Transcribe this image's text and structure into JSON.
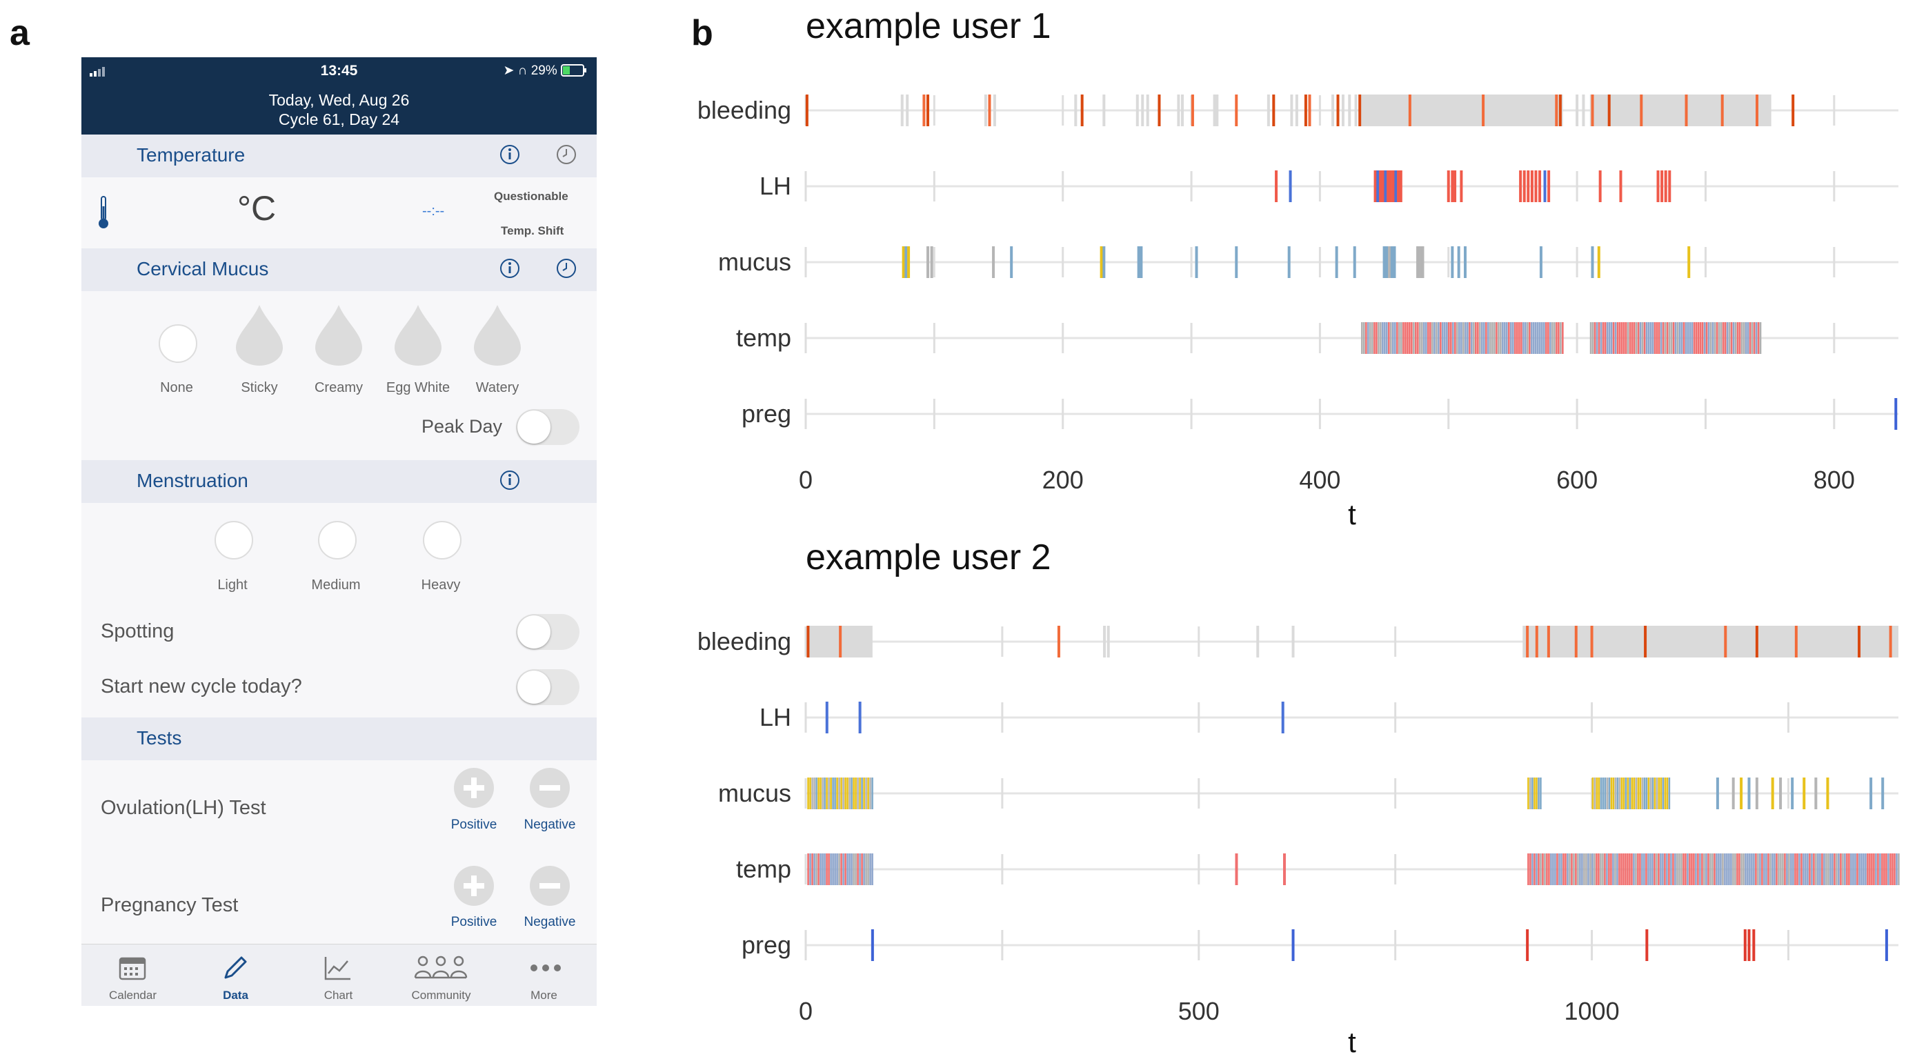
{
  "panel_labels": {
    "a": "a",
    "b": "b"
  },
  "phone": {
    "status": {
      "time": "13:45",
      "battery": "29%"
    },
    "header": {
      "date_line": "Today, Wed, Aug 26",
      "cycle_line": "Cycle 61, Day 24"
    },
    "temperature": {
      "title": "Temperature",
      "unit": "°C",
      "time_placeholder": "--:--",
      "questionable_label": "Questionable",
      "temp_shift_label": "Temp. Shift",
      "icons": [
        "info-icon",
        "clock-icon",
        "thermometer-icon"
      ]
    },
    "cervical_mucus": {
      "title": "Cervical Mucus",
      "options": [
        "None",
        "Sticky",
        "Creamy",
        "Egg White",
        "Watery"
      ],
      "peak_day_label": "Peak Day"
    },
    "menstruation": {
      "title": "Menstruation",
      "options": [
        "Light",
        "Medium",
        "Heavy"
      ],
      "spotting_label": "Spotting",
      "new_cycle_label": "Start new cycle today?"
    },
    "tests": {
      "title": "Tests",
      "ovulation_label": "Ovulation(LH) Test",
      "pregnancy_label": "Pregnancy Test",
      "positive_label": "Positive",
      "negative_label": "Negative"
    },
    "tabs": [
      {
        "label": "Calendar",
        "icon": "calendar-icon",
        "active": false
      },
      {
        "label": "Data",
        "icon": "pencil-icon",
        "active": true
      },
      {
        "label": "Chart",
        "icon": "chart-icon",
        "active": false
      },
      {
        "label": "Community",
        "icon": "community-icon",
        "active": false
      },
      {
        "label": "More",
        "icon": "more-icon",
        "active": false
      }
    ]
  },
  "colors": {
    "bleed_heavy": "#d9480f",
    "bleed_mid": "#f26b3a",
    "bleed_light": "#dadada",
    "lh_pos": "#f05a4a",
    "lh_neg": "#4a72d8",
    "mucus_yellow": "#e8c21c",
    "mucus_blue": "#7fa9c9",
    "mucus_gray": "#b5b5b5",
    "temp_red": "#f07070",
    "temp_blue": "#8fa6cc",
    "temp_gray": "#b0b0b0",
    "preg_pos": "#e03b2e",
    "preg_neg": "#3d62d6",
    "baseline": "#e4e4e4"
  },
  "chart_data": [
    {
      "type": "event-strip",
      "title": "example user 1",
      "xlabel": "t",
      "xlim": [
        0,
        850
      ],
      "xticks": [
        0,
        200,
        400,
        600,
        800
      ],
      "rows": [
        "bleeding",
        "LH",
        "mucus",
        "temp",
        "preg"
      ],
      "events": {
        "bleeding": [
          {
            "x": 1,
            "c": "bleed_heavy"
          },
          {
            "x": 75,
            "c": "bleed_light"
          },
          {
            "x": 79,
            "c": "bleed_light"
          },
          {
            "x": 92,
            "c": "bleed_mid"
          },
          {
            "x": 95,
            "c": "bleed_heavy"
          },
          {
            "x": 140,
            "c": "bleed_light"
          },
          {
            "x": 143,
            "c": "bleed_mid"
          },
          {
            "x": 147,
            "c": "bleed_light"
          },
          {
            "x": 210,
            "c": "bleed_light"
          },
          {
            "x": 215,
            "c": "bleed_heavy"
          },
          {
            "x": 232,
            "c": "bleed_light"
          },
          {
            "x": 258,
            "c": "bleed_light"
          },
          {
            "x": 262,
            "c": "bleed_light"
          },
          {
            "x": 266,
            "c": "bleed_light"
          },
          {
            "x": 275,
            "c": "bleed_heavy"
          },
          {
            "x": 290,
            "c": "bleed_light"
          },
          {
            "x": 293,
            "c": "bleed_light"
          },
          {
            "x": 301,
            "c": "bleed_mid"
          },
          {
            "x": 318,
            "c": "bleed_light"
          },
          {
            "x": 320,
            "c": "bleed_light"
          },
          {
            "x": 335,
            "c": "bleed_mid"
          },
          {
            "x": 360,
            "c": "bleed_light"
          },
          {
            "x": 364,
            "c": "bleed_heavy"
          },
          {
            "x": 378,
            "c": "bleed_light"
          },
          {
            "x": 382,
            "c": "bleed_light"
          },
          {
            "x": 389,
            "c": "bleed_heavy"
          },
          {
            "x": 392,
            "c": "bleed_mid"
          },
          {
            "x": 410,
            "c": "bleed_light"
          },
          {
            "x": 414,
            "c": "bleed_heavy"
          },
          {
            "x": 418,
            "c": "bleed_light"
          },
          {
            "x": 423,
            "c": "bleed_light"
          },
          {
            "x": 428,
            "c": "bleed_light"
          },
          {
            "x": 431,
            "c": "bleed_heavy"
          },
          {
            "x0": 432,
            "x1": 589,
            "c": "bleed_light"
          },
          {
            "x": 470,
            "c": "bleed_mid"
          },
          {
            "x": 527,
            "c": "bleed_mid"
          },
          {
            "x": 584,
            "c": "bleed_mid"
          },
          {
            "x": 587,
            "c": "bleed_heavy"
          },
          {
            "x": 600,
            "c": "bleed_light"
          },
          {
            "x": 605,
            "c": "bleed_light"
          },
          {
            "x0": 610,
            "x1": 750,
            "c": "bleed_light"
          },
          {
            "x": 612,
            "c": "bleed_mid"
          },
          {
            "x": 625,
            "c": "bleed_heavy"
          },
          {
            "x": 650,
            "c": "bleed_mid"
          },
          {
            "x": 685,
            "c": "bleed_mid"
          },
          {
            "x": 713,
            "c": "bleed_mid"
          },
          {
            "x": 740,
            "c": "bleed_mid"
          },
          {
            "x": 750,
            "c": "bleed_light"
          },
          {
            "x": 768,
            "c": "bleed_heavy"
          }
        ],
        "LH": [
          {
            "x": 366,
            "c": "lh_pos"
          },
          {
            "x": 377,
            "c": "lh_neg"
          },
          {
            "x": 443,
            "c": "lh_pos"
          },
          {
            "x": 445,
            "c": "lh_neg"
          },
          {
            "x": 447,
            "c": "lh_pos"
          },
          {
            "x": 449,
            "c": "lh_pos"
          },
          {
            "x": 451,
            "c": "lh_neg"
          },
          {
            "x": 453,
            "c": "lh_pos"
          },
          {
            "x": 455,
            "c": "lh_pos"
          },
          {
            "x": 457,
            "c": "lh_pos"
          },
          {
            "x": 459,
            "c": "lh_neg"
          },
          {
            "x": 461,
            "c": "lh_pos"
          },
          {
            "x": 463,
            "c": "lh_pos"
          },
          {
            "x": 500,
            "c": "lh_pos"
          },
          {
            "x": 503,
            "c": "lh_pos"
          },
          {
            "x": 505,
            "c": "lh_pos"
          },
          {
            "x": 510,
            "c": "lh_pos"
          },
          {
            "x": 556,
            "c": "lh_pos"
          },
          {
            "x": 559,
            "c": "lh_pos"
          },
          {
            "x": 562,
            "c": "lh_pos"
          },
          {
            "x": 565,
            "c": "lh_pos"
          },
          {
            "x": 568,
            "c": "lh_pos"
          },
          {
            "x": 571,
            "c": "lh_pos"
          },
          {
            "x": 575,
            "c": "lh_neg"
          },
          {
            "x": 578,
            "c": "lh_pos"
          },
          {
            "x": 618,
            "c": "lh_pos"
          },
          {
            "x": 634,
            "c": "lh_pos"
          },
          {
            "x": 663,
            "c": "lh_pos"
          },
          {
            "x": 666,
            "c": "lh_pos"
          },
          {
            "x": 669,
            "c": "lh_pos"
          },
          {
            "x": 672,
            "c": "lh_pos"
          }
        ],
        "mucus": [
          {
            "x": 76,
            "c": "mucus_yellow"
          },
          {
            "x": 78,
            "c": "mucus_blue"
          },
          {
            "x": 80,
            "c": "mucus_yellow"
          },
          {
            "x": 95,
            "c": "mucus_gray"
          },
          {
            "x": 98,
            "c": "mucus_gray"
          },
          {
            "x": 146,
            "c": "mucus_gray"
          },
          {
            "x": 160,
            "c": "mucus_blue"
          },
          {
            "x": 230,
            "c": "mucus_yellow"
          },
          {
            "x": 232,
            "c": "mucus_blue"
          },
          {
            "x": 259,
            "c": "mucus_blue"
          },
          {
            "x": 261,
            "c": "mucus_blue"
          },
          {
            "x": 304,
            "c": "mucus_blue"
          },
          {
            "x": 335,
            "c": "mucus_blue"
          },
          {
            "x": 376,
            "c": "mucus_blue"
          },
          {
            "x": 413,
            "c": "mucus_blue"
          },
          {
            "x": 427,
            "c": "mucus_blue"
          },
          {
            "x": 450,
            "c": "mucus_blue"
          },
          {
            "x": 452,
            "c": "mucus_blue"
          },
          {
            "x": 454,
            "c": "mucus_gray"
          },
          {
            "x": 456,
            "c": "mucus_blue"
          },
          {
            "x": 458,
            "c": "mucus_blue"
          },
          {
            "x": 476,
            "c": "mucus_gray"
          },
          {
            "x": 478,
            "c": "mucus_gray"
          },
          {
            "x": 480,
            "c": "mucus_gray"
          },
          {
            "x": 503,
            "c": "mucus_blue"
          },
          {
            "x": 508,
            "c": "mucus_blue"
          },
          {
            "x": 513,
            "c": "mucus_blue"
          },
          {
            "x": 572,
            "c": "mucus_blue"
          },
          {
            "x": 612,
            "c": "mucus_blue"
          },
          {
            "x": 617,
            "c": "mucus_yellow"
          },
          {
            "x": 687,
            "c": "mucus_yellow"
          }
        ],
        "temp": [
          {
            "x0": 432,
            "x1": 589,
            "c": "temp_mix"
          },
          {
            "x0": 610,
            "x1": 743,
            "c": "temp_mix"
          }
        ],
        "preg": [
          {
            "x": 848,
            "c": "preg_neg"
          }
        ]
      }
    },
    {
      "type": "event-strip",
      "title": "example user 2",
      "xlabel": "t",
      "xlim": [
        0,
        1390
      ],
      "xticks": [
        0,
        500,
        1000
      ],
      "rows": [
        "bleeding",
        "LH",
        "mucus",
        "temp",
        "preg"
      ],
      "events": {
        "bleeding": [
          {
            "x0": 2,
            "x1": 85,
            "c": "bleed_light"
          },
          {
            "x": 3,
            "c": "bleed_heavy"
          },
          {
            "x": 44,
            "c": "bleed_mid"
          },
          {
            "x": 322,
            "c": "bleed_mid"
          },
          {
            "x": 380,
            "c": "bleed_light"
          },
          {
            "x": 385,
            "c": "bleed_light"
          },
          {
            "x": 575,
            "c": "bleed_light"
          },
          {
            "x": 620,
            "c": "bleed_light"
          },
          {
            "x0": 912,
            "x1": 1390,
            "c": "bleed_light"
          },
          {
            "x": 918,
            "c": "bleed_mid"
          },
          {
            "x": 930,
            "c": "bleed_mid"
          },
          {
            "x": 945,
            "c": "bleed_mid"
          },
          {
            "x": 980,
            "c": "bleed_mid"
          },
          {
            "x": 1000,
            "c": "bleed_mid"
          },
          {
            "x": 1068,
            "c": "bleed_heavy"
          },
          {
            "x": 1170,
            "c": "bleed_mid"
          },
          {
            "x": 1210,
            "c": "bleed_heavy"
          },
          {
            "x": 1260,
            "c": "bleed_mid"
          },
          {
            "x": 1340,
            "c": "bleed_heavy"
          },
          {
            "x": 1380,
            "c": "bleed_mid"
          }
        ],
        "LH": [
          {
            "x": 27,
            "c": "lh_neg"
          },
          {
            "x": 69,
            "c": "lh_neg"
          },
          {
            "x": 607,
            "c": "lh_neg"
          }
        ],
        "mucus": [
          {
            "x0": 2,
            "x1": 85,
            "c": "mucus_mix"
          },
          {
            "x0": 918,
            "x1": 935,
            "c": "mucus_mix"
          },
          {
            "x0": 1000,
            "x1": 1098,
            "c": "mucus_mix"
          },
          {
            "x": 1160,
            "c": "mucus_blue"
          },
          {
            "x": 1180,
            "c": "mucus_gray"
          },
          {
            "x": 1190,
            "c": "mucus_yellow"
          },
          {
            "x": 1200,
            "c": "mucus_blue"
          },
          {
            "x": 1210,
            "c": "mucus_gray"
          },
          {
            "x": 1230,
            "c": "mucus_yellow"
          },
          {
            "x": 1240,
            "c": "mucus_gray"
          },
          {
            "x": 1255,
            "c": "mucus_blue"
          },
          {
            "x": 1270,
            "c": "mucus_yellow"
          },
          {
            "x": 1285,
            "c": "mucus_gray"
          },
          {
            "x": 1300,
            "c": "mucus_yellow"
          },
          {
            "x": 1355,
            "c": "mucus_blue"
          },
          {
            "x": 1370,
            "c": "mucus_blue"
          }
        ],
        "temp": [
          {
            "x0": 2,
            "x1": 85,
            "c": "temp_mix"
          },
          {
            "x": 548,
            "c": "temp_red"
          },
          {
            "x": 609,
            "c": "temp_red"
          },
          {
            "x0": 918,
            "x1": 1390,
            "c": "temp_mix"
          }
        ],
        "preg": [
          {
            "x": 85,
            "c": "preg_neg"
          },
          {
            "x": 620,
            "c": "preg_neg"
          },
          {
            "x": 918,
            "c": "preg_pos"
          },
          {
            "x": 1070,
            "c": "preg_pos"
          },
          {
            "x": 1195,
            "c": "preg_pos"
          },
          {
            "x": 1200,
            "c": "preg_pos"
          },
          {
            "x": 1206,
            "c": "preg_pos"
          },
          {
            "x": 1375,
            "c": "preg_neg"
          }
        ]
      }
    }
  ]
}
